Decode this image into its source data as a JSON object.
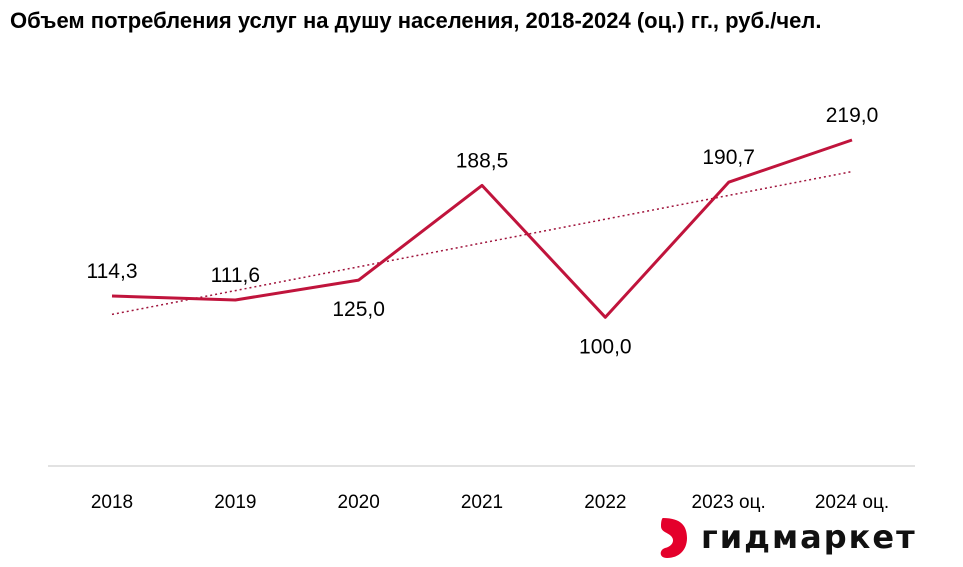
{
  "title": "Объем потребления услуг на душу населения, 2018-2024 (оц.) гг., руб./чел.",
  "brand": {
    "name": "гидмаркет",
    "logo_color": "#e4002b"
  },
  "colors": {
    "line": "#c0143c",
    "trend": "#a0143c",
    "axis": "#d9d9d9"
  },
  "chart_data": {
    "type": "line",
    "title": "Объем потребления услуг на душу населения, 2018-2024 (оц.) гг., руб./чел.",
    "categories": [
      "2018",
      "2019",
      "2020",
      "2021",
      "2022",
      "2023 оц.",
      "2024 оц."
    ],
    "values": [
      114.3,
      111.6,
      125.0,
      188.5,
      100.0,
      190.7,
      219.0
    ],
    "value_labels": [
      "114,3",
      "111,6",
      "125,0",
      "188,5",
      "100,0",
      "190,7",
      "219,0"
    ],
    "trendline": "linear",
    "xlabel": "",
    "ylabel": "",
    "grid": false,
    "legend": "none"
  }
}
